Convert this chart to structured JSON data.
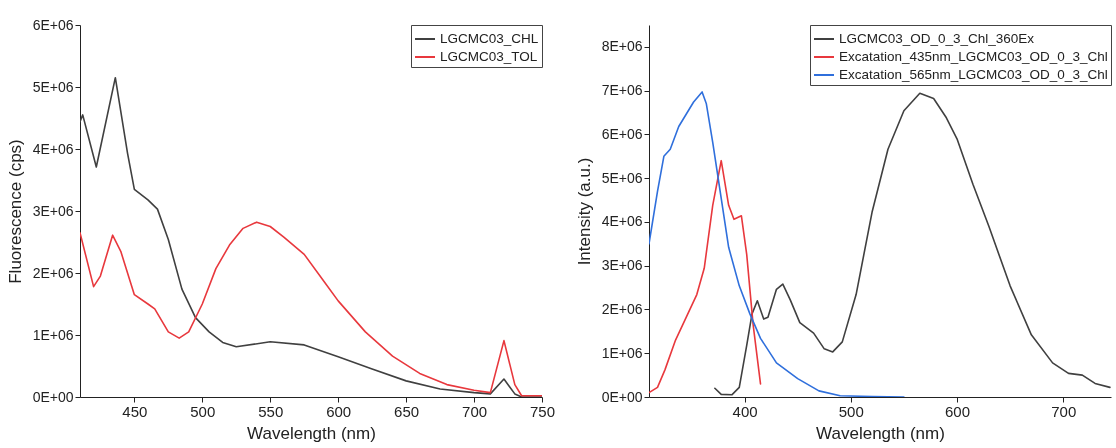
{
  "chart_data": [
    {
      "type": "line",
      "xlabel": "Wavelength (nm)",
      "ylabel": "Fluorescence (cps)",
      "xlim": [
        410,
        750
      ],
      "xticks": [
        450,
        500,
        550,
        600,
        650,
        700,
        750
      ],
      "ylim": [
        0,
        6000000
      ],
      "yticks": [
        {
          "value": 0,
          "label": "0E+00"
        },
        {
          "value": 1000000,
          "label": "1E+06"
        },
        {
          "value": 2000000,
          "label": "2E+06"
        },
        {
          "value": 3000000,
          "label": "3E+06"
        },
        {
          "value": 4000000,
          "label": "4E+06"
        },
        {
          "value": 5000000,
          "label": "5E+06"
        },
        {
          "value": 6000000,
          "label": "6E+06"
        }
      ],
      "grid": false,
      "legend": "top right",
      "line_style": "solid",
      "marker": "none",
      "series": [
        {
          "name": "LGCMC03_CHL",
          "color": "#404040",
          "x": [
            410,
            412,
            422,
            436,
            445,
            450,
            460,
            467,
            475,
            485,
            495,
            505,
            515,
            525,
            550,
            575,
            600,
            625,
            650,
            675,
            700,
            712,
            722,
            730,
            735,
            750
          ],
          "values": [
            4440000,
            4550000,
            3710000,
            5150000,
            3930000,
            3350000,
            3180000,
            3030000,
            2540000,
            1740000,
            1280000,
            1050000,
            880000,
            810000,
            890000,
            840000,
            650000,
            450000,
            260000,
            130000,
            70000,
            50000,
            290000,
            50000,
            0,
            0
          ]
        },
        {
          "name": "LGCMC03_TOL",
          "color": "#e8383d",
          "x": [
            410,
            420,
            425,
            434,
            440,
            450,
            460,
            465,
            475,
            483,
            490,
            500,
            510,
            520,
            530,
            540,
            550,
            560,
            575,
            590,
            600,
            620,
            640,
            660,
            680,
            700,
            712,
            722,
            730,
            735,
            750
          ],
          "values": [
            2650000,
            1780000,
            1950000,
            2610000,
            2350000,
            1650000,
            1500000,
            1420000,
            1050000,
            950000,
            1050000,
            1500000,
            2070000,
            2450000,
            2720000,
            2820000,
            2750000,
            2580000,
            2300000,
            1850000,
            1550000,
            1050000,
            660000,
            380000,
            200000,
            110000,
            70000,
            910000,
            200000,
            20000,
            20000
          ]
        }
      ]
    },
    {
      "type": "line",
      "xlabel": "Wavelength (nm)",
      "ylabel": "Intensity (a.u.)",
      "xlim": [
        310,
        745
      ],
      "xticks": [
        400,
        500,
        600,
        700
      ],
      "ylim": [
        0,
        8500000
      ],
      "yticks": [
        {
          "value": 0,
          "label": "0E+00"
        },
        {
          "value": 1000000,
          "label": "1E+06"
        },
        {
          "value": 2000000,
          "label": "2E+06"
        },
        {
          "value": 3000000,
          "label": "3E+06"
        },
        {
          "value": 4000000,
          "label": "4E+06"
        },
        {
          "value": 5000000,
          "label": "5E+06"
        },
        {
          "value": 6000000,
          "label": "6E+06"
        },
        {
          "value": 7000000,
          "label": "7E+06"
        },
        {
          "value": 8000000,
          "label": "8E+06"
        }
      ],
      "grid": false,
      "legend": "top right",
      "line_style": "solid",
      "marker": "none",
      "series": [
        {
          "name": "LGCMC03_OD_0_3_Chl_360Ex",
          "color": "#404040",
          "x": [
            372,
            378,
            388,
            395,
            402,
            407,
            412,
            418,
            422,
            430,
            436,
            443,
            452,
            465,
            475,
            483,
            492,
            505,
            520,
            535,
            550,
            565,
            578,
            590,
            600,
            615,
            630,
            650,
            670,
            690,
            705,
            718,
            730,
            744
          ],
          "values": [
            200000,
            60000,
            50000,
            220000,
            1180000,
            1900000,
            2200000,
            1780000,
            1820000,
            2460000,
            2580000,
            2220000,
            1700000,
            1460000,
            1100000,
            1030000,
            1260000,
            2340000,
            4220000,
            5660000,
            6540000,
            6940000,
            6820000,
            6380000,
            5900000,
            4860000,
            3900000,
            2540000,
            1420000,
            780000,
            540000,
            500000,
            310000,
            220000
          ]
        },
        {
          "name": "Excatation_435nm_LGCMC03_OD_0_3_Chl",
          "color": "#e8383d",
          "x": [
            310,
            318,
            325,
            335,
            345,
            355,
            362,
            370,
            378,
            385,
            390,
            397,
            402,
            408,
            415
          ],
          "values": [
            100000,
            220000,
            620000,
            1300000,
            1820000,
            2340000,
            2940000,
            4380000,
            5400000,
            4380000,
            4060000,
            4140000,
            3260000,
            1660000,
            300000
          ]
        },
        {
          "name": "Excatation_565nm_LGCMC03_OD_0_3_Chl",
          "color": "#2f6fdc",
          "x": [
            310,
            318,
            324,
            330,
            338,
            345,
            352,
            360,
            364,
            370,
            378,
            385,
            395,
            405,
            415,
            430,
            450,
            470,
            490,
            520,
            550
          ],
          "values": [
            3500000,
            4700000,
            5500000,
            5660000,
            6180000,
            6460000,
            6740000,
            6970000,
            6700000,
            5820000,
            4540000,
            3420000,
            2540000,
            1900000,
            1340000,
            780000,
            420000,
            140000,
            30000,
            10000,
            0
          ]
        }
      ]
    }
  ]
}
